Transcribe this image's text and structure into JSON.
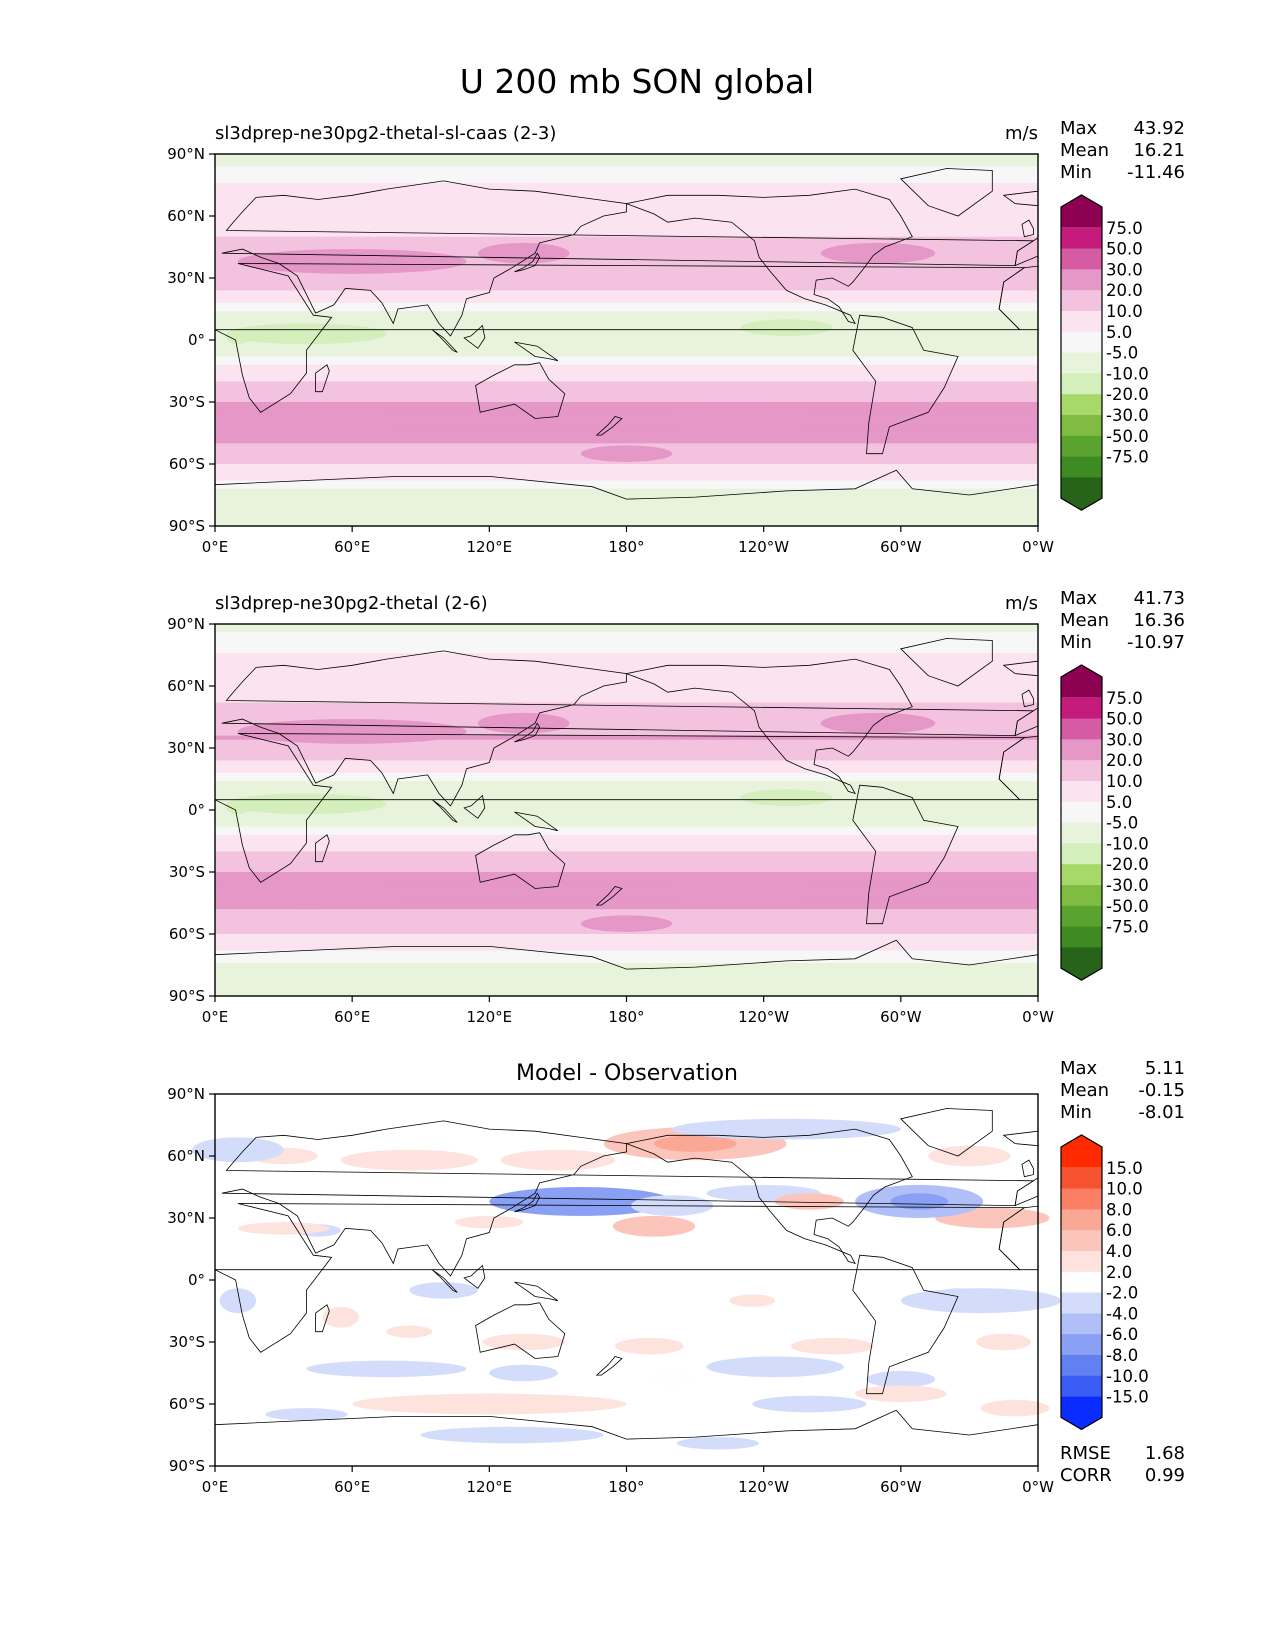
{
  "figure": {
    "title": "U 200 mb SON global"
  },
  "colors": {
    "main_levels": [
      -75,
      -50,
      -30,
      -20,
      -10,
      -5,
      5,
      10,
      20,
      30,
      50,
      75
    ],
    "main_colors": [
      "#276419",
      "#3d8b22",
      "#5aa32f",
      "#7fbc41",
      "#a6d96a",
      "#d4eebc",
      "#e8f3dc",
      "#f7f7f7",
      "#fbe3f0",
      "#f3c2df",
      "#e597c7",
      "#d55ba5",
      "#c51b7d",
      "#8e0152"
    ],
    "diff_levels": [
      -15,
      -10,
      -8,
      -6,
      -4,
      -2,
      2,
      4,
      6,
      8,
      10,
      15
    ],
    "diff_colors": [
      "#0a2cff",
      "#3a5cf5",
      "#6180f2",
      "#8aa0f5",
      "#b0bff7",
      "#d3dcfa",
      "#fefefe",
      "#fde2de",
      "#fcc5bc",
      "#fba795",
      "#fb7f64",
      "#f65431",
      "#ff2a00"
    ],
    "land_outline": "#000000"
  },
  "chart_data": [
    {
      "type": "heatmap",
      "subtitle": "sl3dprep-ne30pg2-thetal-sl-caas (2-3)",
      "units": "m/s",
      "stats": {
        "max": "43.92",
        "mean": "16.21",
        "min": "-11.46"
      },
      "xticks": [
        "0°E",
        "60°E",
        "120°E",
        "180°",
        "120°W",
        "60°W",
        "0°W"
      ],
      "yticks": [
        "90°N",
        "60°N",
        "30°N",
        "0°",
        "30°S",
        "60°S",
        "90°S"
      ],
      "colorbar_labels": [
        "75.0",
        "50.0",
        "30.0",
        "20.0",
        "10.0",
        "5.0",
        "-5.0",
        "-10.0",
        "-20.0",
        "-30.0",
        "-50.0",
        "-75.0"
      ],
      "zonal_profile": {
        "lat": [
          90,
          75,
          60,
          45,
          35,
          25,
          15,
          5,
          -5,
          -15,
          -25,
          -35,
          -45,
          -55,
          -65,
          -75,
          -90
        ],
        "u": [
          2,
          10,
          15,
          22,
          28,
          20,
          6,
          -3,
          2,
          12,
          26,
          34,
          32,
          28,
          12,
          3,
          0
        ]
      }
    },
    {
      "type": "heatmap",
      "subtitle": "sl3dprep-ne30pg2-thetal (2-6)",
      "units": "m/s",
      "stats": {
        "max": "41.73",
        "mean": "16.36",
        "min": "-10.97"
      },
      "xticks": [
        "0°E",
        "60°E",
        "120°E",
        "180°",
        "120°W",
        "60°W",
        "0°W"
      ],
      "yticks": [
        "90°N",
        "60°N",
        "30°N",
        "0°",
        "30°S",
        "60°S",
        "90°S"
      ],
      "colorbar_labels": [
        "75.0",
        "50.0",
        "30.0",
        "20.0",
        "10.0",
        "5.0",
        "-5.0",
        "-10.0",
        "-20.0",
        "-30.0",
        "-50.0",
        "-75.0"
      ],
      "zonal_profile": {
        "lat": [
          90,
          75,
          60,
          45,
          35,
          25,
          15,
          5,
          -5,
          -15,
          -25,
          -35,
          -45,
          -55,
          -65,
          -75,
          -90
        ],
        "u": [
          3,
          11,
          16,
          24,
          30,
          20,
          6,
          -3,
          2,
          12,
          27,
          34,
          31,
          28,
          13,
          4,
          0
        ]
      }
    },
    {
      "type": "heatmap",
      "subtitle": "Model - Observation",
      "units": "",
      "stats": {
        "max": "5.11",
        "mean": "-0.15",
        "min": "-8.01"
      },
      "extra_stats": {
        "rmse": "1.68",
        "corr": "0.99"
      },
      "xticks": [
        "0°E",
        "60°E",
        "120°E",
        "180°",
        "120°W",
        "60°W",
        "0°W"
      ],
      "yticks": [
        "90°N",
        "60°N",
        "30°N",
        "0°",
        "30°S",
        "60°S",
        "90°S"
      ],
      "colorbar_labels": [
        "15.0",
        "10.0",
        "8.0",
        "6.0",
        "4.0",
        "2.0",
        "-2.0",
        "-4.0",
        "-6.0",
        "-8.0",
        "-10.0",
        "-15.0"
      ]
    }
  ]
}
